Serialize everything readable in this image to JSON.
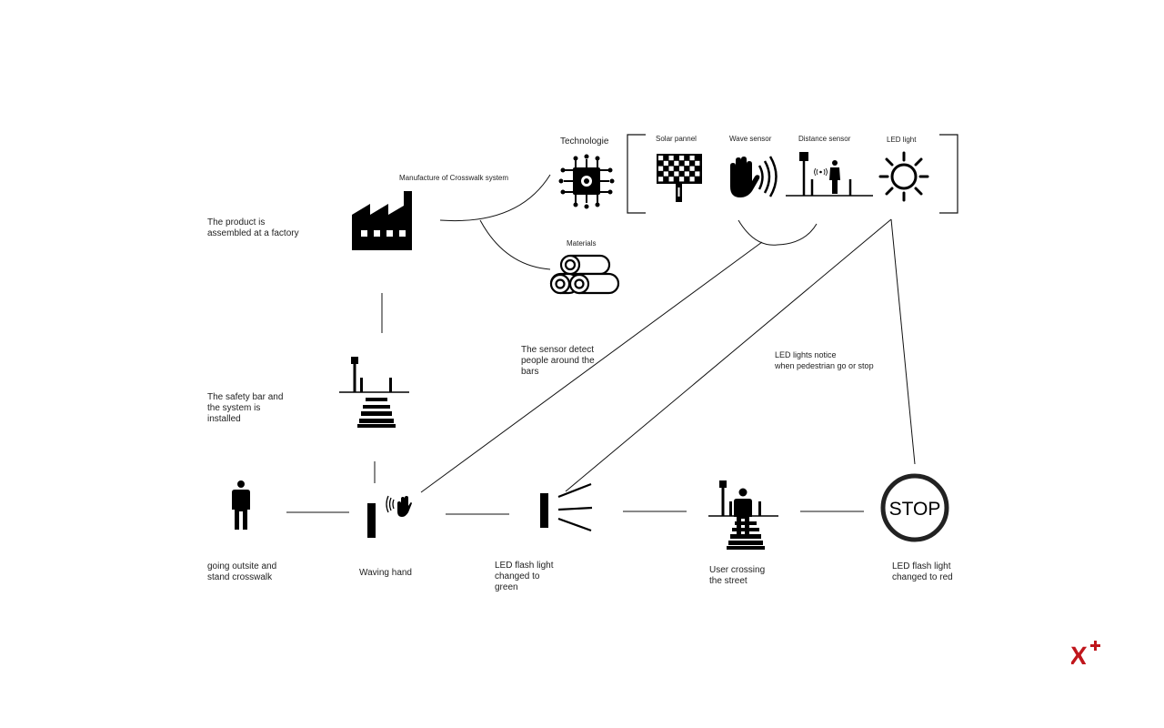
{
  "manufacture": {
    "title": "Manufacture of Crosswalk system",
    "factory_caption": "The product is\nassembled at a factory",
    "materials": "Materials"
  },
  "technology": {
    "title": "Technologie",
    "items": [
      {
        "label": "Solar pannel",
        "icon": "solar-panel-icon"
      },
      {
        "label": "Wave sensor",
        "icon": "wave-hand-icon"
      },
      {
        "label": "Distance sensor",
        "icon": "distance-sensor-icon"
      },
      {
        "label": "LED light",
        "icon": "sun-icon"
      }
    ]
  },
  "install": {
    "caption": "The safety bar  and\nthe system is\ninstalled"
  },
  "annotations": {
    "sensor": "The sensor detect\npeople around the\nbars",
    "led": "LED lights notice\nwhen pedestrian go or stop"
  },
  "steps": [
    {
      "label": "going outsite and\nstand crosswalk",
      "icon": "person-icon"
    },
    {
      "label": "Waving hand",
      "icon": "waving-hand-sensor-icon"
    },
    {
      "label": "LED flash light\nchanged to\ngreen",
      "icon": "flash-light-icon"
    },
    {
      "label": "User crossing\nthe street",
      "icon": "pedestrian-crossing-icon"
    },
    {
      "label": "LED flash light\nchanged to red",
      "icon": "stop-sign-icon"
    }
  ],
  "stop_sign_text": "STOP",
  "colors": {
    "ink": "#000000",
    "brand": "#c0161c"
  }
}
